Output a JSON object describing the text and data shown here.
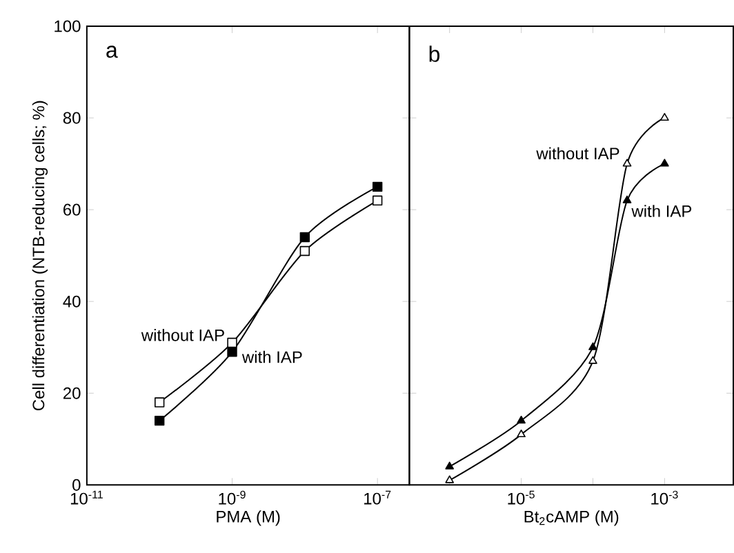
{
  "chart_data": [
    {
      "type": "line",
      "title": "a",
      "xlabel": "PMA (M)",
      "ylabel": "Cell differentiation  (NTB-reducing cells; %)",
      "log": "x",
      "marker": "square",
      "grid": false,
      "legend": false,
      "xlim": [
        1e-11,
        2.75e-07
      ],
      "ylim": [
        0,
        100
      ],
      "xticks": [
        {
          "value": 1e-11,
          "label": "10$^{-11}$"
        },
        {
          "value": 1e-09,
          "label": "10$^{-9}$"
        },
        {
          "value": 1e-07,
          "label": "10$^{-7}$"
        }
      ],
      "yticks": [
        0,
        20,
        40,
        60,
        80,
        100
      ],
      "x": [
        1e-10,
        1e-09,
        1e-08,
        1e-07
      ],
      "series": [
        {
          "name": "without IAP",
          "color": "#000000",
          "values": [
            18,
            31,
            51,
            62
          ]
        },
        {
          "name": "with IAP",
          "color": "#000000",
          "values": [
            14,
            29,
            54,
            65
          ]
        }
      ]
    },
    {
      "type": "line",
      "title": "b",
      "xlabel": "Bt$_{2}$cAMP (M)",
      "log": "x",
      "marker": "triangle",
      "grid": false,
      "legend": false,
      "tick_labels": "x",
      "xlim": [
        2.75e-07,
        0.0091
      ],
      "ylim": [
        0,
        100
      ],
      "xticks": [
        {
          "value": 1e-06,
          "label": null
        },
        {
          "value": 1e-05,
          "label": "10$^{-5}$"
        },
        {
          "value": 0.0001,
          "label": null
        },
        {
          "value": 0.001,
          "label": "10$^{-3}$"
        }
      ],
      "yticks": [
        0,
        20,
        40,
        60,
        80,
        100
      ],
      "x": [
        1e-06,
        1e-05,
        0.0001,
        0.0003,
        0.001
      ],
      "series": [
        {
          "name": "without IAP",
          "color": "#000000",
          "values": [
            1,
            11,
            27,
            70,
            80
          ]
        },
        {
          "name": "with IAP",
          "color": "#000000",
          "values": [
            4,
            14,
            30,
            62,
            70
          ]
        }
      ]
    }
  ]
}
